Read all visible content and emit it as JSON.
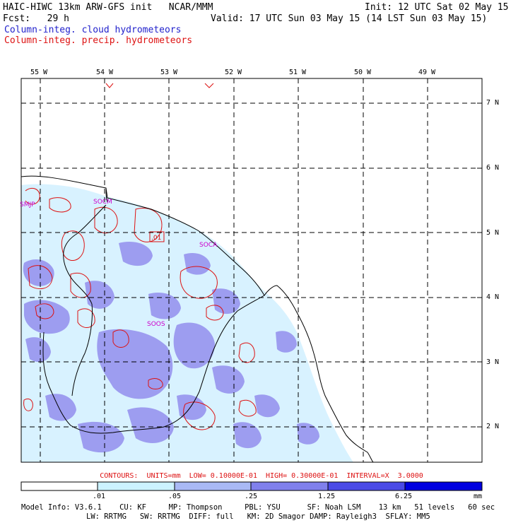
{
  "header": {
    "title_left": "HAIC-HIWC 13km ARW-GFS init   NCAR/MMM",
    "init": "Init: 12 UTC Sat 02 May 15",
    "fcst": "Fcst:   29 h",
    "valid": "Valid: 17 UTC Sun 03 May 15 (14 LST Sun 03 May 15)",
    "field_cloud": "Column-integ. cloud hydrometeors",
    "field_precip": "Column-integ. precip. hydrometeors"
  },
  "map": {
    "longitude_labels": [
      "55 W",
      "54 W",
      "53 W",
      "52 W",
      "51 W",
      "50 W",
      "49 W"
    ],
    "latitude_labels": [
      "7 N",
      "6 N",
      "5 N",
      "4 N",
      "3 N",
      "2 N"
    ],
    "station_labels": [
      "SMJP",
      "SOCM",
      "SOCA",
      "SOOS"
    ],
    "contour_label": ".01",
    "colors": {
      "coastline": "#000000",
      "grid": "#000000",
      "contour": "#dd1111",
      "station": "#cc00cc",
      "shade_light": "#d8f2ff",
      "shade_medium": "#9999ee"
    }
  },
  "contour_info": "CONTOURS:  UNITS=mm  LOW= 0.10000E-01  HIGH= 0.30000E-01  INTERVAL=X  3.0000",
  "colorbar": {
    "labels": [
      ".01",
      ".05",
      ".25",
      "1.25",
      "6.25"
    ],
    "units": "mm",
    "colors": [
      "#ffffff",
      "#ccf2ff",
      "#a9b9f5",
      "#8080ec",
      "#4a4ae6",
      "#0000e0"
    ]
  },
  "footer": {
    "line1": "Model Info: V3.6.1    CU: KF     MP: Thompson     PBL: YSU      SF: Noah LSM    13 km   51 levels   60 sec",
    "line2": "LW: RRTMG   SW: RRTMG  DIFF: full   KM: 2D Smagor DAMP: Rayleigh3  SFLAY: MM5"
  }
}
